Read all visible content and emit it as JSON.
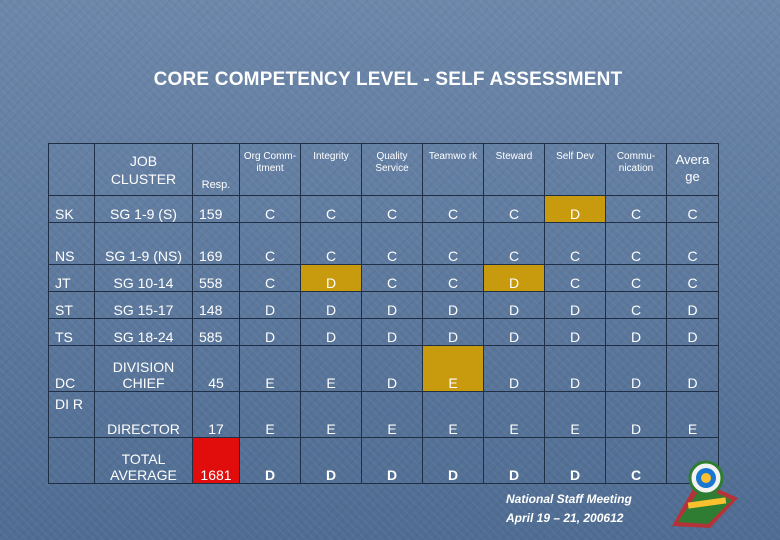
{
  "title": "CORE COMPETENCY LEVEL - SELF ASSESSMENT",
  "headers": {
    "blank": "",
    "job_cluster": "JOB CLUSTER",
    "resp": "Resp.",
    "org": "Org Comm- itment",
    "integrity": "Integrity",
    "quality": "Quality Service",
    "teamwork": "Teamwo rk",
    "steward": "Steward",
    "selfdev": "Self Dev",
    "comm": "Commu- nication",
    "average": "Avera ge"
  },
  "rows": [
    {
      "code": "SK",
      "cluster": "SG 1-9 (S)",
      "resp": "159",
      "org": "C",
      "integrity": "C",
      "quality": "C",
      "teamwork": "C",
      "steward": "C",
      "selfdev": "D",
      "comm": "C",
      "average": "C"
    },
    {
      "code": "NS",
      "cluster": "SG 1-9 (NS)",
      "resp": "169",
      "org": "C",
      "integrity": "C",
      "quality": "C",
      "teamwork": "C",
      "steward": "C",
      "selfdev": "C",
      "comm": "C",
      "average": "C"
    },
    {
      "code": "JT",
      "cluster": "SG 10-14",
      "resp": "558",
      "org": "C",
      "integrity": "D",
      "quality": "C",
      "teamwork": "C",
      "steward": "D",
      "selfdev": "C",
      "comm": "C",
      "average": "C"
    },
    {
      "code": "ST",
      "cluster": "SG 15-17",
      "resp": "148",
      "org": "D",
      "integrity": "D",
      "quality": "D",
      "teamwork": "D",
      "steward": "D",
      "selfdev": "D",
      "comm": "C",
      "average": "D"
    },
    {
      "code": "TS",
      "cluster": "SG 18-24",
      "resp": "585",
      "org": "D",
      "integrity": "D",
      "quality": "D",
      "teamwork": "D",
      "steward": "D",
      "selfdev": "D",
      "comm": "D",
      "average": "D"
    },
    {
      "code": "DC",
      "cluster": "DIVISION CHIEF",
      "resp": "45",
      "org": "E",
      "integrity": "E",
      "quality": "D",
      "teamwork": "E",
      "steward": "D",
      "selfdev": "D",
      "comm": "D",
      "average": "D"
    },
    {
      "code": "DI R",
      "cluster": "DIRECTOR",
      "resp": "17",
      "org": "E",
      "integrity": "E",
      "quality": "E",
      "teamwork": "E",
      "steward": "E",
      "selfdev": "E",
      "comm": "D",
      "average": "E"
    },
    {
      "code": "",
      "cluster": "TOTAL AVERAGE",
      "resp": "1681",
      "org": "D",
      "integrity": "D",
      "quality": "D",
      "teamwork": "D",
      "steward": "D",
      "selfdev": "D",
      "comm": "C",
      "average": ""
    }
  ],
  "colors": {
    "highlight": "#c89a0e",
    "total_red": "#e10d0d",
    "background": "#5f7b9f"
  },
  "footer": {
    "line1": "National Staff Meeting",
    "line2": "April 19 – 21, 2006",
    "slide_number": "12"
  },
  "logo_icon": "organization-seal-icon"
}
